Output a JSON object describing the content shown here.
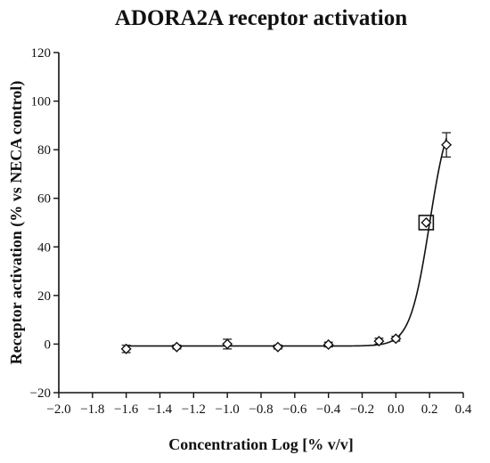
{
  "chart_data": {
    "type": "scatter",
    "title": "ADORA2A receptor activation",
    "xlabel": "Concentration Log [% v/v]",
    "ylabel": "Receptor activation (% vs NECA control)",
    "xlim": [
      -2.0,
      0.4
    ],
    "ylim": [
      -20,
      120
    ],
    "x_ticks": [
      -2.0,
      -1.8,
      -1.6,
      -1.4,
      -1.2,
      -1.0,
      -0.8,
      -0.6,
      -0.4,
      -0.2,
      0.0,
      0.2,
      0.4
    ],
    "x_tick_labels": [
      "−2.0",
      "−1.8",
      "−1.6",
      "−1.4",
      "−1.2",
      "−1.0",
      "−0.8",
      "−0.6",
      "−0.4",
      "−0.2",
      "0.0",
      "0.2",
      "0.4"
    ],
    "y_ticks": [
      -20,
      0,
      20,
      40,
      60,
      80,
      100,
      120
    ],
    "y_tick_labels": [
      "−20",
      "0",
      "20",
      "40",
      "60",
      "80",
      "100",
      "120"
    ],
    "grid": false,
    "series": [
      {
        "marker": "diamond",
        "points": [
          {
            "x": -1.6,
            "y": -2.0,
            "err": 1.5
          },
          {
            "x": -1.3,
            "y": -1.2,
            "err": 0.8
          },
          {
            "x": -1.0,
            "y": 0.0,
            "err": 2.0
          },
          {
            "x": -0.7,
            "y": -1.2,
            "err": 0.8
          },
          {
            "x": -0.4,
            "y": -0.2,
            "err": 1.0
          },
          {
            "x": -0.1,
            "y": 1.2,
            "err": 1.2
          },
          {
            "x": 0.0,
            "y": 2.2,
            "err": 1.0
          },
          {
            "x": 0.18,
            "y": 50.0,
            "err": 0.0
          },
          {
            "x": 0.3,
            "y": 82.0,
            "err": 5.0
          }
        ]
      }
    ],
    "fit_curve": {
      "model": "four-parameter logistic",
      "bottom": -0.8,
      "top": 100,
      "logEC50": 0.2,
      "hill": 7.5,
      "x_range": [
        -1.6,
        0.3
      ]
    },
    "highlight": {
      "x": 0.18,
      "y": 50.0,
      "shape": "square"
    }
  }
}
